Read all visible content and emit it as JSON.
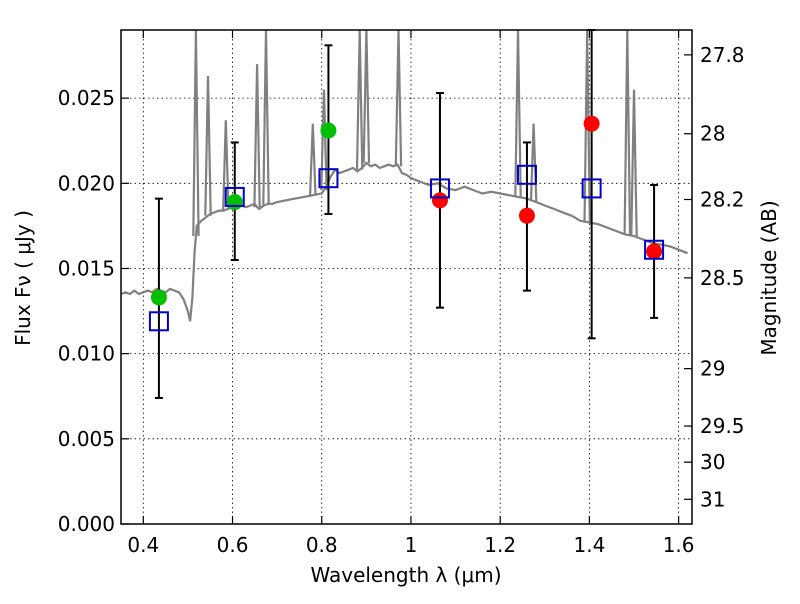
{
  "chart_data": {
    "type": "scatter",
    "xlabel": "Wavelength  λ (μm)",
    "ylabel": "Flux  Fν  ( μJy )",
    "y2label": "Magnitude (AB)",
    "xlim": [
      0.35,
      1.63
    ],
    "ylim": [
      0.0,
      0.029
    ],
    "grid": true,
    "x_ticks": [
      0.4,
      0.6,
      0.8,
      1.0,
      1.2,
      1.4,
      1.6
    ],
    "x_tick_labels": [
      "0.4",
      "0.6",
      "0.8",
      "1",
      "1.2",
      "1.4",
      "1.6"
    ],
    "y_ticks": [
      0.0,
      0.005,
      0.01,
      0.015,
      0.02,
      0.025
    ],
    "y_tick_labels": [
      "0.000",
      "0.005",
      "0.010",
      "0.015",
      "0.020",
      "0.025"
    ],
    "y2_ticks": [
      {
        "label": "27.8",
        "flux": 0.02754
      },
      {
        "label": "28",
        "flux": 0.02291
      },
      {
        "label": "28.2",
        "flux": 0.01905
      },
      {
        "label": "28.5",
        "flux": 0.01445
      },
      {
        "label": "29",
        "flux": 0.00912
      },
      {
        "label": "29.5",
        "flux": 0.00575
      },
      {
        "label": "30",
        "flux": 0.00363
      },
      {
        "label": "31",
        "flux": 0.00145
      }
    ],
    "series": [
      {
        "kind": "model_spectrum",
        "color": "#808080",
        "x": [
          0.35,
          0.36,
          0.37,
          0.38,
          0.39,
          0.4,
          0.41,
          0.42,
          0.43,
          0.44,
          0.45,
          0.46,
          0.47,
          0.48,
          0.49,
          0.5,
          0.505,
          0.51,
          0.515,
          0.52,
          0.53,
          0.54,
          0.55,
          0.56,
          0.57,
          0.58,
          0.59,
          0.6,
          0.61,
          0.62,
          0.63,
          0.64,
          0.65,
          0.655,
          0.66,
          0.67,
          0.68,
          0.69,
          0.7,
          0.72,
          0.74,
          0.76,
          0.78,
          0.8,
          0.81,
          0.82,
          0.83,
          0.84,
          0.85,
          0.86,
          0.87,
          0.88,
          0.89,
          0.9,
          0.91,
          0.92,
          0.93,
          0.94,
          0.95,
          0.96,
          0.97,
          0.98,
          0.99,
          1.0,
          1.02,
          1.04,
          1.06,
          1.08,
          1.1,
          1.12,
          1.14,
          1.16,
          1.18,
          1.2,
          1.22,
          1.24,
          1.26,
          1.28,
          1.3,
          1.32,
          1.34,
          1.36,
          1.38,
          1.4,
          1.42,
          1.44,
          1.46,
          1.48,
          1.5,
          1.52,
          1.54,
          1.56,
          1.58,
          1.6,
          1.62
        ],
        "y": [
          0.0135,
          0.0136,
          0.0135,
          0.0137,
          0.0135,
          0.0136,
          0.0137,
          0.0136,
          0.0138,
          0.0137,
          0.0136,
          0.0138,
          0.0137,
          0.0136,
          0.0132,
          0.0125,
          0.0119,
          0.0133,
          0.016,
          0.0175,
          0.0178,
          0.018,
          0.0182,
          0.0183,
          0.0184,
          0.0184,
          0.0185,
          0.0186,
          0.0186,
          0.0187,
          0.0186,
          0.0187,
          0.0188,
          0.0186,
          0.0185,
          0.0187,
          0.0188,
          0.0188,
          0.0189,
          0.019,
          0.0191,
          0.0192,
          0.0193,
          0.0194,
          0.0198,
          0.0204,
          0.0208,
          0.0206,
          0.0207,
          0.0208,
          0.0209,
          0.0207,
          0.0209,
          0.0212,
          0.021,
          0.0211,
          0.0209,
          0.021,
          0.0211,
          0.021,
          0.0211,
          0.0206,
          0.0205,
          0.0203,
          0.0201,
          0.0199,
          0.02,
          0.0197,
          0.0196,
          0.0198,
          0.0196,
          0.0194,
          0.0195,
          0.0194,
          0.0193,
          0.0192,
          0.0191,
          0.0189,
          0.0187,
          0.0185,
          0.0183,
          0.0181,
          0.0178,
          0.0177,
          0.0176,
          0.0174,
          0.0172,
          0.017,
          0.0169,
          0.0167,
          0.0165,
          0.0164,
          0.0163,
          0.0161,
          0.0159
        ]
      },
      {
        "kind": "observed_with_errors",
        "color": "#000000",
        "x": [
          0.435,
          0.605,
          0.815,
          1.065,
          1.26,
          1.405,
          1.545
        ],
        "y": [
          0.0133,
          0.0189,
          0.0231,
          0.019,
          0.0181,
          0.0235,
          0.016
        ],
        "err_low": [
          0.0074,
          0.0155,
          0.0182,
          0.0127,
          0.0137,
          0.0109,
          0.0121
        ],
        "err_high": [
          0.0191,
          0.0224,
          0.0281,
          0.0253,
          0.0224,
          0.029,
          0.0199
        ]
      },
      {
        "kind": "green_points",
        "color": "#00bf00",
        "x": [
          0.435,
          0.605,
          0.815
        ],
        "y": [
          0.0133,
          0.0189,
          0.0231
        ]
      },
      {
        "kind": "red_points",
        "color": "#ff0000",
        "x": [
          1.065,
          1.26,
          1.405,
          1.545
        ],
        "y": [
          0.019,
          0.0181,
          0.0235,
          0.016
        ]
      },
      {
        "kind": "model_photometry",
        "color": "#0000cc",
        "marker": "open-square",
        "x": [
          0.435,
          0.605,
          0.815,
          1.065,
          1.26,
          1.405,
          1.545
        ],
        "y": [
          0.0119,
          0.0192,
          0.0203,
          0.0197,
          0.0205,
          0.0197,
          0.0161
        ]
      }
    ],
    "spikes": [
      {
        "x": 0.518,
        "peak": 0.029
      },
      {
        "x": 0.545,
        "peak": 0.0263
      },
      {
        "x": 0.585,
        "peak": 0.0237
      },
      {
        "x": 0.655,
        "peak": 0.027
      },
      {
        "x": 0.675,
        "peak": 0.029
      },
      {
        "x": 0.78,
        "peak": 0.0235
      },
      {
        "x": 0.805,
        "peak": 0.0255
      },
      {
        "x": 0.885,
        "peak": 0.029
      },
      {
        "x": 0.9,
        "peak": 0.029
      },
      {
        "x": 0.972,
        "peak": 0.029
      },
      {
        "x": 1.24,
        "peak": 0.029
      },
      {
        "x": 1.275,
        "peak": 0.0235
      },
      {
        "x": 1.395,
        "peak": 0.029
      },
      {
        "x": 1.485,
        "peak": 0.029
      },
      {
        "x": 1.5,
        "peak": 0.0255
      }
    ]
  }
}
